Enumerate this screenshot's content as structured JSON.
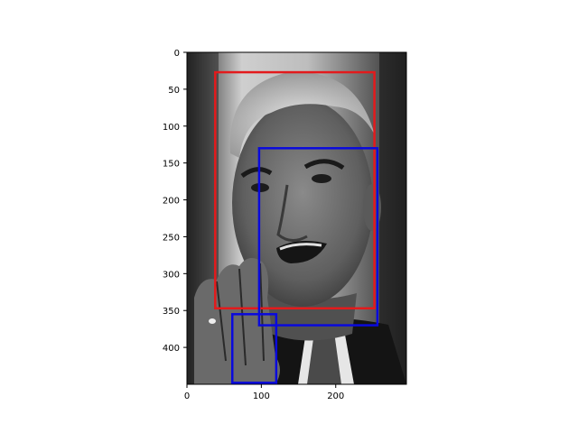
{
  "chart_data": {
    "type": "image_with_boxes",
    "image": {
      "width": 295,
      "height": 450,
      "description_hidden": true
    },
    "x_axis": {
      "ticks": [
        0,
        100,
        200
      ],
      "labels": [
        "0",
        "100",
        "200"
      ],
      "range": [
        0,
        295
      ]
    },
    "y_axis": {
      "ticks": [
        0,
        50,
        100,
        150,
        200,
        250,
        300,
        350,
        400
      ],
      "labels": [
        "0",
        "50",
        "100",
        "150",
        "200",
        "250",
        "300",
        "350",
        "400"
      ],
      "range": [
        450,
        0
      ]
    },
    "boxes": [
      {
        "x1": 38,
        "y1": 27,
        "x2": 252,
        "y2": 347,
        "color": "#e31a1c"
      },
      {
        "x1": 97,
        "y1": 130,
        "x2": 256,
        "y2": 370,
        "color": "#0a0adc"
      },
      {
        "x1": 61,
        "y1": 355,
        "x2": 120,
        "y2": 448,
        "color": "#0a0adc"
      }
    ]
  }
}
